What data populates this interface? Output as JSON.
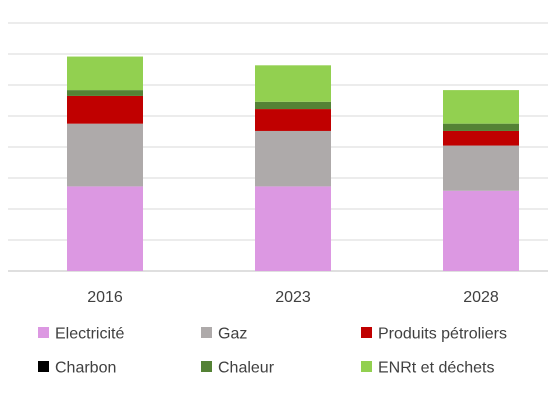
{
  "chart_data": {
    "type": "bar",
    "stacked": true,
    "categories": [
      "2016",
      "2023",
      "2028"
    ],
    "series": [
      {
        "name": "Electricité",
        "color": "#dc98e2",
        "values": [
          2.9,
          2.9,
          2.75
        ]
      },
      {
        "name": "Gaz",
        "color": "#aeaaaa",
        "values": [
          2.15,
          1.9,
          1.55
        ]
      },
      {
        "name": "Produits pétroliers",
        "color": "#c00000",
        "values": [
          0.95,
          0.75,
          0.5
        ]
      },
      {
        "name": "Charbon",
        "color": "#000000",
        "values": [
          0,
          0,
          0
        ]
      },
      {
        "name": "Chaleur",
        "color": "#548235",
        "values": [
          0.2,
          0.25,
          0.25
        ]
      },
      {
        "name": "ENRt et déchets",
        "color": "#92d050",
        "values": [
          1.15,
          1.25,
          1.15
        ]
      }
    ],
    "ylim": [
      0,
      8.5
    ],
    "grid": true,
    "legend_position": "bottom"
  }
}
